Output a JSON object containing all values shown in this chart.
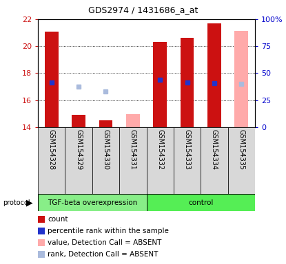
{
  "title": "GDS2974 / 1431686_a_at",
  "samples": [
    "GSM154328",
    "GSM154329",
    "GSM154330",
    "GSM154331",
    "GSM154332",
    "GSM154333",
    "GSM154334",
    "GSM154335"
  ],
  "group_labels": [
    "TGF-beta overexpression",
    "control"
  ],
  "group_colors": [
    "#88ee88",
    "#55ee55"
  ],
  "ylim_left": [
    14,
    22
  ],
  "ylim_right": [
    0,
    100
  ],
  "yticks_left": [
    14,
    16,
    18,
    20,
    22
  ],
  "yticks_right": [
    0,
    25,
    50,
    75,
    100
  ],
  "ytick_labels_right": [
    "0",
    "25",
    "50",
    "75",
    "100%"
  ],
  "bar_values": [
    21.1,
    14.9,
    14.5,
    null,
    20.3,
    20.6,
    21.7,
    null
  ],
  "bar_color_present": "#cc1111",
  "bar_color_absent": "#ffaaaa",
  "absent_bar_values": [
    null,
    null,
    null,
    14.95,
    null,
    null,
    null,
    21.15
  ],
  "rank_squares_present": [
    17.3,
    null,
    null,
    null,
    17.5,
    17.3,
    17.25,
    null
  ],
  "rank_squares_absent": [
    null,
    17.0,
    16.65,
    null,
    null,
    null,
    null,
    17.2
  ],
  "rank_color_present": "#2233cc",
  "rank_color_absent": "#aabbdd",
  "plot_bg": "#ffffff",
  "sample_box_color": "#d8d8d8",
  "left_axis_color": "#cc1111",
  "right_axis_color": "#0000cc",
  "legend_items": [
    [
      "#cc1111",
      "count"
    ],
    [
      "#2233cc",
      "percentile rank within the sample"
    ],
    [
      "#ffaaaa",
      "value, Detection Call = ABSENT"
    ],
    [
      "#aabbdd",
      "rank, Detection Call = ABSENT"
    ]
  ]
}
